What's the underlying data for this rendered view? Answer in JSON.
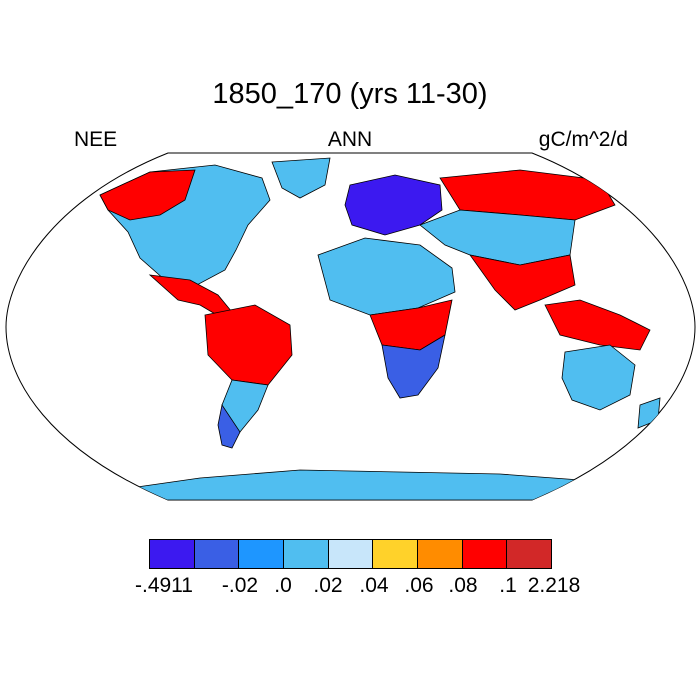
{
  "title": "1850_170 (yrs 11-30)",
  "variable": "NEE",
  "season": "ANN",
  "units": "gC/m^2/d",
  "colorbar": {
    "colors": [
      "#3c19f0",
      "#3a5fe5",
      "#1e96ff",
      "#50bef0",
      "#c8e6fa",
      "#ffd22a",
      "#ff8c00",
      "#ff0000",
      "#d22828"
    ],
    "labels": [
      "-.4911",
      "-.02",
      ".0",
      ".02",
      ".04",
      ".06",
      ".08",
      ".1",
      "2.218"
    ]
  },
  "map": {
    "projection": "Robinson",
    "ocean_color": "#ffffff",
    "region_values": {
      "north_america": ".02",
      "alaska_canada_west": ".1",
      "greenland": ".02",
      "mexico_central_america": ".1",
      "amazon": ".1",
      "south_america_south": ".02",
      "patagonia": "-.02",
      "europe": "-.4911",
      "africa_north": ".02",
      "africa_central": ".1",
      "africa_south": "-.02",
      "siberia": ".1",
      "asia": ".02",
      "india_china": ".1",
      "southeast_asia_islands": ".1",
      "australia": ".02",
      "antarctica": ".02"
    }
  }
}
